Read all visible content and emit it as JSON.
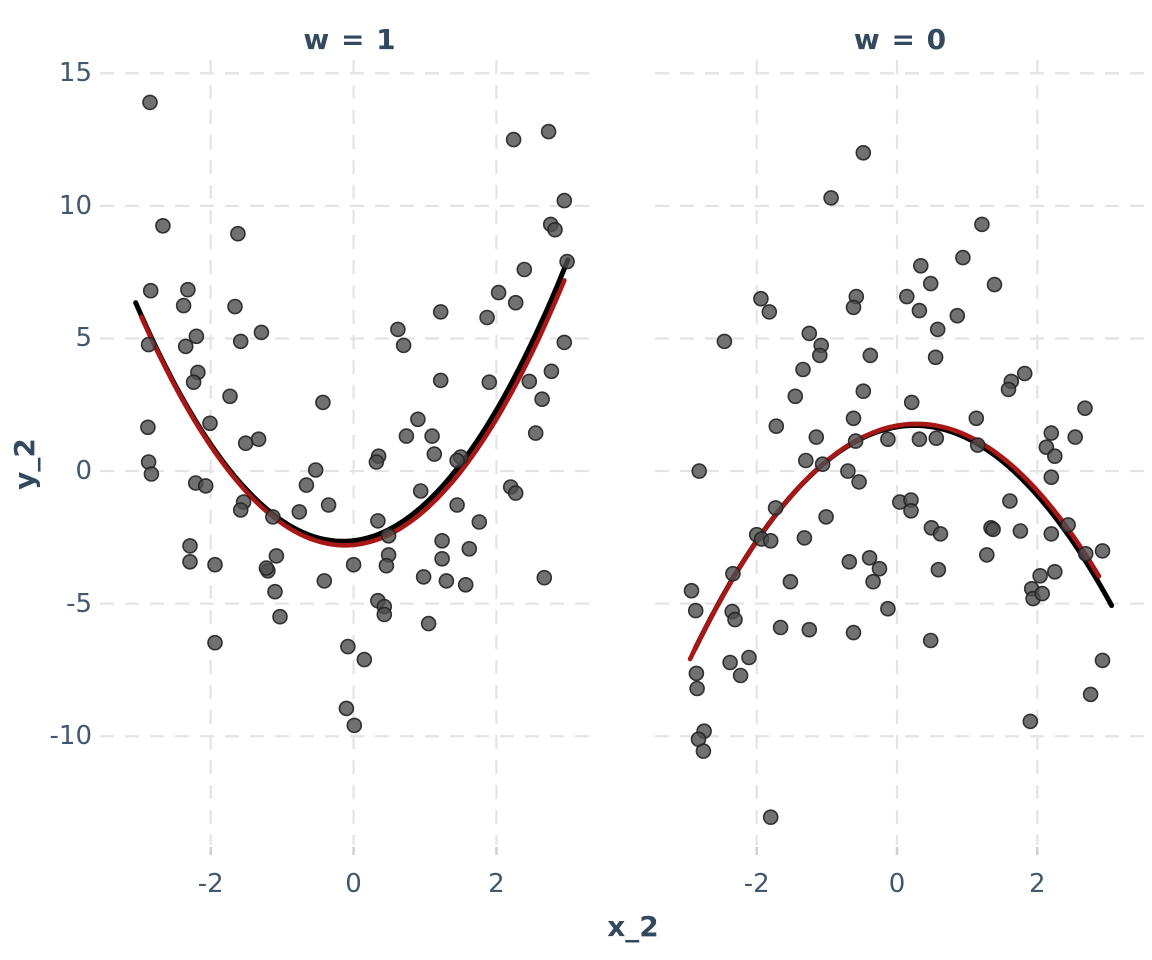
{
  "figure": {
    "background": "#ffffff",
    "title_color": "#33495e",
    "tick_color": "#42586e",
    "grid_color": "#e4e4e4",
    "tick_mark_color": "#cfcfcf"
  },
  "chart_data": {
    "type": "scatter",
    "title": "",
    "xlabel": "x_2",
    "ylabel": "y_2",
    "ylim": [
      -14.1,
      15.5
    ],
    "yticks": [
      15,
      10,
      5,
      0,
      -5,
      -10
    ],
    "xticks": [
      -2,
      0,
      2
    ],
    "grid": "dashed",
    "legend": "none",
    "point_style": {
      "radius": 7,
      "fill": "#4e4e4e",
      "fill_opacity": 0.8,
      "stroke": "#222222",
      "stroke_opacity": 0.9,
      "stroke_width": 1.6
    },
    "facets": [
      {
        "title": "w = 1",
        "xlim": [
          -3.55,
          3.45
        ],
        "true_curve": {
          "type": "parabola",
          "a": 1.07,
          "h": -0.15,
          "k": -2.65,
          "x_range": [
            -3.05,
            3.0
          ],
          "color": "#000000",
          "width": 5
        },
        "fit_curve": {
          "type": "parabola",
          "a": 1.06,
          "h": -0.12,
          "k": -2.8,
          "x_range": [
            -2.97,
            2.95
          ],
          "color": "#a81616",
          "width": 4.6
        },
        "points": [
          [
            -2.85,
            13.9
          ],
          [
            -2.67,
            9.25
          ],
          [
            -1.62,
            8.95
          ],
          [
            -2.84,
            6.8
          ],
          [
            -2.32,
            6.84
          ],
          [
            -2.38,
            6.24
          ],
          [
            -1.66,
            6.2
          ],
          [
            -1.29,
            5.23
          ],
          [
            -2.2,
            5.08
          ],
          [
            -2.87,
            4.77
          ],
          [
            -2.35,
            4.7
          ],
          [
            -1.58,
            4.89
          ],
          [
            -2.18,
            3.72
          ],
          [
            -2.24,
            3.35
          ],
          [
            -1.73,
            2.82
          ],
          [
            -2.01,
            1.8
          ],
          [
            -0.43,
            2.59
          ],
          [
            -2.88,
            1.65
          ],
          [
            -1.51,
            1.05
          ],
          [
            -1.33,
            1.2
          ],
          [
            2.24,
            12.5
          ],
          [
            2.73,
            12.8
          ],
          [
            2.95,
            10.2
          ],
          [
            2.76,
            9.3
          ],
          [
            2.82,
            9.1
          ],
          [
            2.99,
            7.9
          ],
          [
            2.39,
            7.6
          ],
          [
            2.03,
            6.73
          ],
          [
            2.27,
            6.35
          ],
          [
            1.87,
            5.79
          ],
          [
            1.22,
            6.0
          ],
          [
            0.62,
            5.34
          ],
          [
            0.7,
            4.74
          ],
          [
            2.95,
            4.85
          ],
          [
            2.77,
            3.76
          ],
          [
            1.22,
            3.42
          ],
          [
            1.9,
            3.35
          ],
          [
            2.46,
            3.38
          ],
          [
            2.64,
            2.71
          ],
          [
            0.9,
            1.95
          ],
          [
            0.74,
            1.32
          ],
          [
            1.1,
            1.32
          ],
          [
            2.55,
            1.43
          ],
          [
            1.13,
            0.64
          ],
          [
            0.35,
            0.56
          ],
          [
            1.5,
            0.53
          ],
          [
            -2.87,
            0.34
          ],
          [
            -2.83,
            -0.11
          ],
          [
            -2.21,
            -0.45
          ],
          [
            -2.07,
            -0.56
          ],
          [
            -1.54,
            -1.17
          ],
          [
            -1.58,
            -1.47
          ],
          [
            -1.13,
            -1.73
          ],
          [
            -0.76,
            -1.54
          ],
          [
            -0.66,
            -0.53
          ],
          [
            -0.53,
            0.04
          ],
          [
            -0.35,
            -1.28
          ],
          [
            -2.29,
            -2.82
          ],
          [
            -2.29,
            -3.42
          ],
          [
            -1.94,
            -3.53
          ],
          [
            -1.08,
            -3.2
          ],
          [
            -1.2,
            -3.76
          ],
          [
            -1.22,
            -3.66
          ],
          [
            -0.41,
            -4.14
          ],
          [
            -1.1,
            -4.55
          ],
          [
            -1.03,
            -5.49
          ],
          [
            -1.94,
            -6.47
          ],
          [
            -0.08,
            -6.62
          ],
          [
            -0.1,
            -8.95
          ],
          [
            0.32,
            0.34
          ],
          [
            1.45,
            0.4
          ],
          [
            0.94,
            -0.75
          ],
          [
            2.2,
            -0.6
          ],
          [
            2.27,
            -0.83
          ],
          [
            1.45,
            -1.28
          ],
          [
            0.34,
            -1.88
          ],
          [
            1.76,
            -1.92
          ],
          [
            0.49,
            -2.44
          ],
          [
            1.24,
            -2.63
          ],
          [
            1.62,
            -2.93
          ],
          [
            0.49,
            -3.16
          ],
          [
            1.24,
            -3.31
          ],
          [
            0.0,
            -3.53
          ],
          [
            0.46,
            -3.57
          ],
          [
            0.98,
            -3.99
          ],
          [
            1.3,
            -4.14
          ],
          [
            1.57,
            -4.29
          ],
          [
            2.67,
            -4.02
          ],
          [
            0.34,
            -4.89
          ],
          [
            0.43,
            -5.11
          ],
          [
            0.43,
            -5.41
          ],
          [
            1.05,
            -5.75
          ],
          [
            0.15,
            -7.11
          ],
          [
            0.01,
            -9.59
          ]
        ]
      },
      {
        "title": "w = 0",
        "xlim": [
          -3.45,
          3.55
        ],
        "true_curve": {
          "type": "parabola",
          "a": -0.86,
          "h": 0.25,
          "k": 1.72,
          "x_range": [
            -2.88,
            3.06
          ],
          "color": "#000000",
          "width": 5
        },
        "fit_curve": {
          "type": "parabola",
          "a": -0.85,
          "h": 0.28,
          "k": 1.78,
          "x_range": [
            -2.95,
            2.88
          ],
          "color": "#a81616",
          "width": 4.6
        },
        "points": [
          [
            -0.48,
            12.0
          ],
          [
            -0.94,
            10.3
          ],
          [
            -1.94,
            6.5
          ],
          [
            -1.82,
            6.0
          ],
          [
            -0.58,
            6.58
          ],
          [
            -0.62,
            6.17
          ],
          [
            -2.46,
            4.89
          ],
          [
            -1.25,
            5.19
          ],
          [
            -1.08,
            4.74
          ],
          [
            -1.1,
            4.36
          ],
          [
            -0.38,
            4.36
          ],
          [
            -1.34,
            3.83
          ],
          [
            -1.45,
            2.82
          ],
          [
            -0.48,
            3.01
          ],
          [
            -0.62,
            1.99
          ],
          [
            -1.72,
            1.69
          ],
          [
            -1.15,
            1.28
          ],
          [
            -0.59,
            1.13
          ],
          [
            -0.13,
            1.2
          ],
          [
            1.21,
            9.3
          ],
          [
            0.34,
            7.74
          ],
          [
            0.94,
            8.05
          ],
          [
            0.48,
            7.07
          ],
          [
            0.14,
            6.58
          ],
          [
            1.39,
            7.03
          ],
          [
            0.32,
            6.05
          ],
          [
            0.86,
            5.86
          ],
          [
            0.58,
            5.34
          ],
          [
            0.55,
            4.29
          ],
          [
            1.82,
            3.68
          ],
          [
            1.63,
            3.38
          ],
          [
            1.59,
            3.08
          ],
          [
            0.21,
            2.59
          ],
          [
            1.13,
            1.99
          ],
          [
            2.68,
            2.37
          ],
          [
            2.2,
            1.43
          ],
          [
            2.54,
            1.28
          ],
          [
            0.32,
            1.2
          ],
          [
            0.56,
            1.24
          ],
          [
            1.15,
            0.98
          ],
          [
            2.13,
            0.9
          ],
          [
            2.25,
            0.56
          ],
          [
            -2.82,
            0.0
          ],
          [
            -1.3,
            0.4
          ],
          [
            -1.06,
            0.26
          ],
          [
            -0.7,
            0.0
          ],
          [
            -0.54,
            -0.41
          ],
          [
            -1.73,
            -1.39
          ],
          [
            -1.01,
            -1.73
          ],
          [
            -2.0,
            -2.4
          ],
          [
            -1.93,
            -2.56
          ],
          [
            -1.8,
            -2.63
          ],
          [
            -1.32,
            -2.52
          ],
          [
            -2.34,
            -3.87
          ],
          [
            -0.68,
            -3.42
          ],
          [
            -0.39,
            -3.27
          ],
          [
            -0.25,
            -3.68
          ],
          [
            -0.34,
            -4.17
          ],
          [
            -2.93,
            -4.51
          ],
          [
            -1.52,
            -4.17
          ],
          [
            -2.87,
            -5.26
          ],
          [
            -2.35,
            -5.3
          ],
          [
            -2.31,
            -5.6
          ],
          [
            -1.66,
            -5.9
          ],
          [
            -1.25,
            -5.98
          ],
          [
            -0.62,
            -6.09
          ],
          [
            -2.38,
            -7.22
          ],
          [
            -2.11,
            -7.03
          ],
          [
            -2.23,
            -7.71
          ],
          [
            -2.86,
            -7.63
          ],
          [
            -2.85,
            -8.2
          ],
          [
            -2.75,
            -9.81
          ],
          [
            -2.83,
            -10.11
          ],
          [
            -2.76,
            -10.56
          ],
          [
            -1.8,
            -13.05
          ],
          [
            2.2,
            -0.23
          ],
          [
            0.04,
            -1.17
          ],
          [
            0.2,
            -1.09
          ],
          [
            0.2,
            -1.5
          ],
          [
            1.61,
            -1.13
          ],
          [
            0.49,
            -2.14
          ],
          [
            0.62,
            -2.37
          ],
          [
            1.34,
            -2.14
          ],
          [
            1.37,
            -2.2
          ],
          [
            1.76,
            -2.26
          ],
          [
            2.2,
            -2.37
          ],
          [
            2.44,
            -2.03
          ],
          [
            1.28,
            -3.16
          ],
          [
            2.69,
            -3.12
          ],
          [
            2.93,
            -3.01
          ],
          [
            0.59,
            -3.72
          ],
          [
            2.04,
            -3.95
          ],
          [
            1.92,
            -4.44
          ],
          [
            1.94,
            -4.81
          ],
          [
            2.07,
            -4.62
          ],
          [
            2.25,
            -3.8
          ],
          [
            -0.13,
            -5.19
          ],
          [
            0.48,
            -6.39
          ],
          [
            2.93,
            -7.14
          ],
          [
            2.76,
            -8.42
          ],
          [
            1.9,
            -9.44
          ]
        ]
      }
    ]
  }
}
